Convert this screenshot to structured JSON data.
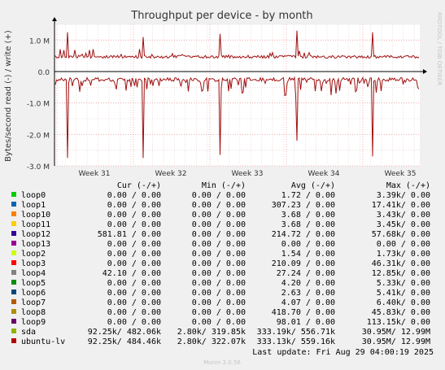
{
  "chart_data": {
    "type": "line",
    "title": "Throughput per device - by month",
    "ylabel": "Bytes/second read (-) / write (+)",
    "watermark": "RRDTOOL / TOBI OETIKER",
    "xlabel": "",
    "x_ticks": [
      "Week 31",
      "Week 32",
      "Week 33",
      "Week 34",
      "Week 35"
    ],
    "y_ticks": [
      "1.0 M",
      "0.0",
      "-1.0 M",
      "-2.0 M",
      "-3.0 M"
    ],
    "y_tick_values": [
      1000000,
      0,
      -1000000,
      -2000000,
      -3000000
    ],
    "ylim": [
      -3000000,
      1500000
    ],
    "grid": true,
    "series": [
      {
        "name": "sda",
        "color": "#99a82b",
        "baseline_write": 470000,
        "baseline_read": -250000
      },
      {
        "name": "ubuntu-lv",
        "color": "#b31e1e",
        "baseline_write": 470000,
        "baseline_read": -250000,
        "notable_read_dips_by_week": [
          -2750000,
          -2750000,
          -2650000,
          -2200000,
          -2700000
        ],
        "notable_write_peaks_by_week": [
          1250000,
          1100000,
          1200000,
          1300000,
          1250000
        ]
      }
    ]
  },
  "legend_header": {
    "cur": "Cur (-/+)",
    "min": "Min (-/+)",
    "avg": "Avg (-/+)",
    "max": "Max (-/+)"
  },
  "legend": [
    {
      "name": "loop0",
      "color": "#00cc00",
      "cur": "0.00 /   0.00",
      "min": "0.00 /   0.00",
      "avg": "1.72 /   0.00",
      "max": "3.39k/   0.00"
    },
    {
      "name": "loop1",
      "color": "#0066b3",
      "cur": "0.00 /   0.00",
      "min": "0.00 /   0.00",
      "avg": "307.23 /   0.00",
      "max": "17.41k/   0.00"
    },
    {
      "name": "loop10",
      "color": "#ff8000",
      "cur": "0.00 /   0.00",
      "min": "0.00 /   0.00",
      "avg": "3.68 /   0.00",
      "max": "3.43k/   0.00"
    },
    {
      "name": "loop11",
      "color": "#ffcc00",
      "cur": "0.00 /   0.00",
      "min": "0.00 /   0.00",
      "avg": "3.68 /   0.00",
      "max": "3.45k/   0.00"
    },
    {
      "name": "loop12",
      "color": "#330099",
      "cur": "581.81 /   0.00",
      "min": "0.00 /   0.00",
      "avg": "214.72 /   0.00",
      "max": "57.68k/   0.00"
    },
    {
      "name": "loop13",
      "color": "#990099",
      "cur": "0.00 /   0.00",
      "min": "0.00 /   0.00",
      "avg": "0.00 /   0.00",
      "max": "0.00 /   0.00"
    },
    {
      "name": "loop2",
      "color": "#ccff00",
      "cur": "0.00 /   0.00",
      "min": "0.00 /   0.00",
      "avg": "1.54 /   0.00",
      "max": "1.73k/   0.00"
    },
    {
      "name": "loop3",
      "color": "#ff0000",
      "cur": "0.00 /   0.00",
      "min": "0.00 /   0.00",
      "avg": "210.09 /   0.00",
      "max": "46.31k/   0.00"
    },
    {
      "name": "loop4",
      "color": "#808080",
      "cur": "42.10 /   0.00",
      "min": "0.00 /   0.00",
      "avg": "27.24 /   0.00",
      "max": "12.85k/   0.00"
    },
    {
      "name": "loop5",
      "color": "#008f00",
      "cur": "0.00 /   0.00",
      "min": "0.00 /   0.00",
      "avg": "4.20 /   0.00",
      "max": "5.33k/   0.00"
    },
    {
      "name": "loop6",
      "color": "#00487d",
      "cur": "0.00 /   0.00",
      "min": "0.00 /   0.00",
      "avg": "2.63 /   0.00",
      "max": "5.41k/   0.00"
    },
    {
      "name": "loop7",
      "color": "#b35a00",
      "cur": "0.00 /   0.00",
      "min": "0.00 /   0.00",
      "avg": "4.07 /   0.00",
      "max": "6.40k/   0.00"
    },
    {
      "name": "loop8",
      "color": "#b38f00",
      "cur": "0.00 /   0.00",
      "min": "0.00 /   0.00",
      "avg": "418.70 /   0.00",
      "max": "45.83k/   0.00"
    },
    {
      "name": "loop9",
      "color": "#6b006b",
      "cur": "0.00 /   0.00",
      "min": "0.00 /   0.00",
      "avg": "98.01 /   0.00",
      "max": "113.15k/   0.00"
    },
    {
      "name": "sda",
      "color": "#8fb300",
      "cur": "92.25k/ 482.06k",
      "min": "2.80k/ 319.85k",
      "avg": "333.19k/ 556.71k",
      "max": "30.95M/  12.99M"
    },
    {
      "name": "ubuntu-lv",
      "color": "#b30000",
      "cur": "92.25k/ 484.46k",
      "min": "2.80k/ 322.07k",
      "avg": "333.13k/ 559.16k",
      "max": "30.95M/  12.99M"
    }
  ],
  "footer": {
    "last_update": "Last update: Fri Aug 29 04:00:19 2025",
    "munin_version": "Munin 2.0.56"
  },
  "colors": {
    "background": "#f0f0f0",
    "plot_background": "#ffffff",
    "grid_minor": "#e0c8c8",
    "grid_major": "#f0a0a0",
    "axis": "#000000",
    "line": "#a01010"
  }
}
